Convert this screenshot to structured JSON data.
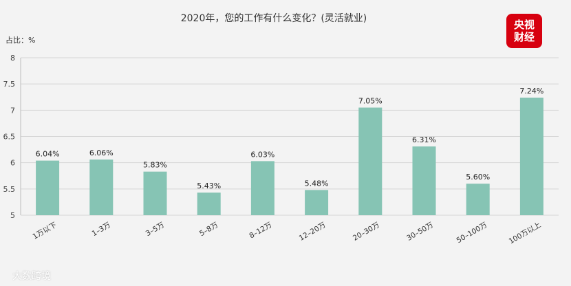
{
  "logo": {
    "line1": "央视",
    "line2": "财经"
  },
  "footer": "大数跨境",
  "chart_data": {
    "type": "bar",
    "title": "2020年，您的工作有什么变化？(灵活就业)",
    "ylabel": "占比：%",
    "categories": [
      "1万以下",
      "1–3万",
      "3–5万",
      "5–8万",
      "8–12万",
      "12–20万",
      "20–30万",
      "30–50万",
      "50–100万",
      "100万以上"
    ],
    "values": [
      6.04,
      6.06,
      5.83,
      5.43,
      6.03,
      5.48,
      7.05,
      6.31,
      5.6,
      7.24
    ],
    "data_labels": [
      "6.04%",
      "6.06%",
      "5.83%",
      "5.43%",
      "6.03%",
      "5.48%",
      "7.05%",
      "6.31%",
      "5.60%",
      "7.24%"
    ],
    "ylim": [
      5,
      8
    ],
    "yticks": [
      "5",
      "5.5",
      "6",
      "6.5",
      "7",
      "7.5",
      "8"
    ],
    "bar_color": "#86c4b4",
    "grid": true
  }
}
